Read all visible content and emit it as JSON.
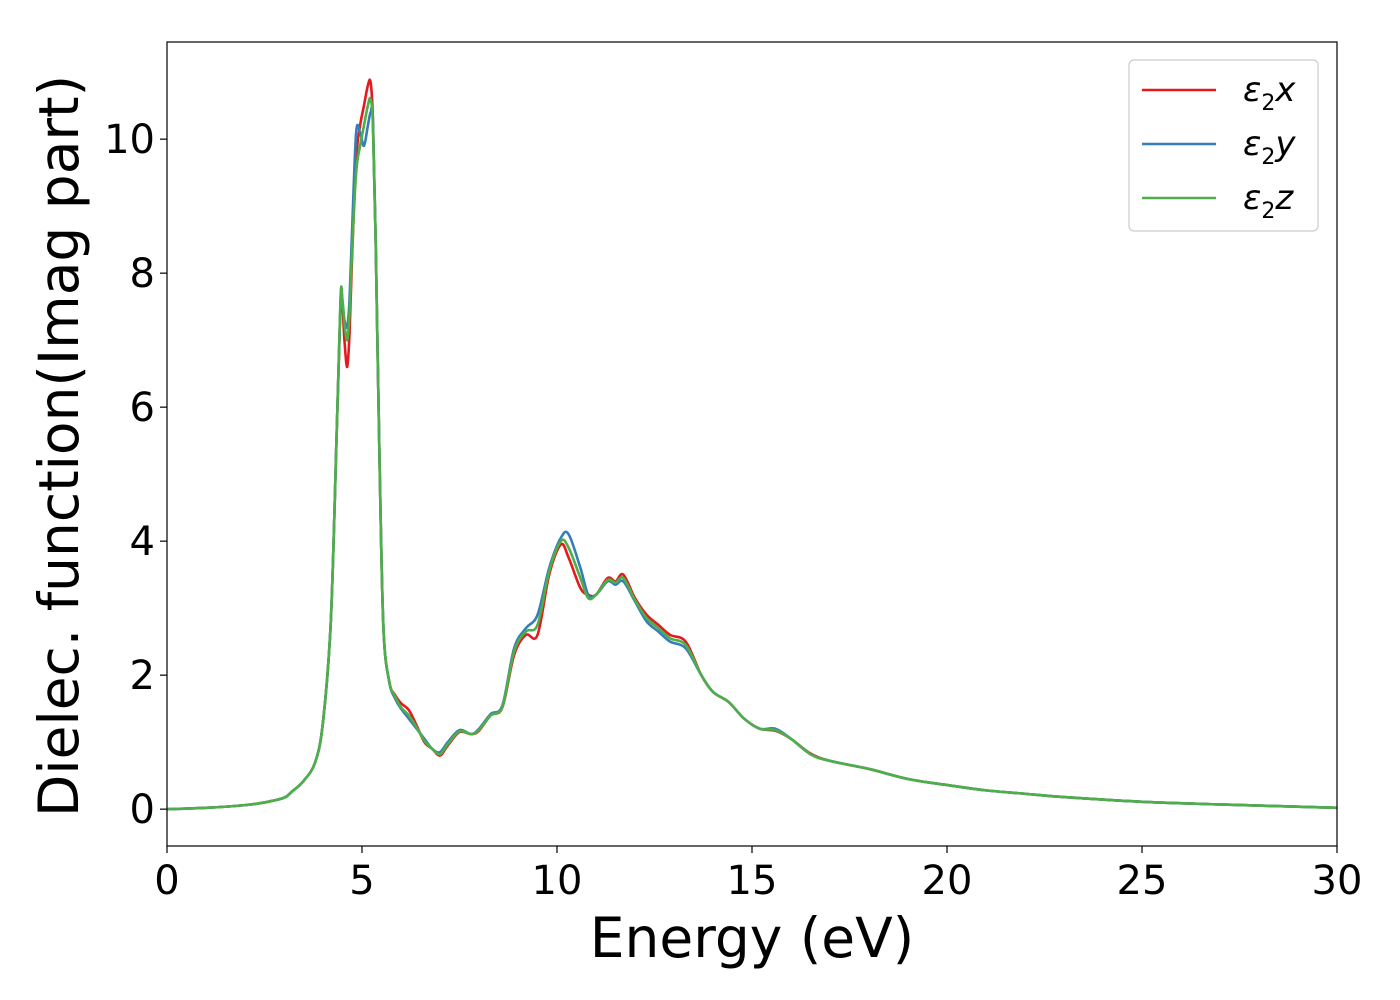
{
  "chart_data": {
    "type": "line",
    "title": "",
    "xlabel": "Energy (eV)",
    "ylabel": "Dielec. function(Imag part)",
    "xlim": [
      0,
      30
    ],
    "ylim": [
      -0.55,
      11.45
    ],
    "xticks": [
      0,
      5,
      10,
      15,
      20,
      25,
      30
    ],
    "yticks": [
      0,
      2,
      4,
      6,
      8,
      10
    ],
    "xtick_labels": [
      "0",
      "5",
      "10",
      "15",
      "20",
      "25",
      "30"
    ],
    "ytick_labels": [
      "0",
      "2",
      "4",
      "6",
      "8",
      "10"
    ],
    "grid": false,
    "legend_position": "top-right",
    "series": [
      {
        "name": "ε2x",
        "legend_base": "ε",
        "legend_sub": "2",
        "legend_tail": "x",
        "color": "#e41a1c",
        "x": [
          0,
          1,
          2,
          2.5,
          3,
          3.2,
          3.5,
          3.8,
          4,
          4.2,
          4.35,
          4.45,
          4.5,
          4.55,
          4.62,
          4.68,
          4.75,
          4.85,
          4.95,
          5.05,
          5.15,
          5.22,
          5.28,
          5.35,
          5.45,
          5.55,
          5.7,
          5.85,
          6,
          6.2,
          6.4,
          6.6,
          6.8,
          7,
          7.2,
          7.5,
          7.8,
          8,
          8.3,
          8.6,
          8.9,
          9.2,
          9.5,
          9.8,
          10.1,
          10.3,
          10.6,
          10.8,
          11,
          11.3,
          11.5,
          11.7,
          12,
          12.3,
          12.6,
          12.9,
          13.3,
          13.7,
          14,
          14.4,
          14.8,
          15.2,
          15.6,
          16,
          16.5,
          17,
          18,
          19,
          20,
          21,
          22,
          23,
          25,
          27,
          30
        ],
        "y": [
          0,
          0.02,
          0.06,
          0.1,
          0.17,
          0.26,
          0.42,
          0.7,
          1.3,
          2.8,
          5.6,
          7.55,
          7.5,
          7.0,
          6.6,
          7.1,
          8.3,
          9.7,
          10.2,
          10.5,
          10.8,
          10.85,
          10.3,
          8.5,
          5.2,
          2.7,
          1.9,
          1.7,
          1.58,
          1.48,
          1.25,
          1.0,
          0.9,
          0.8,
          0.95,
          1.15,
          1.12,
          1.17,
          1.4,
          1.52,
          2.3,
          2.6,
          2.6,
          3.5,
          3.95,
          3.75,
          3.3,
          3.2,
          3.2,
          3.45,
          3.4,
          3.5,
          3.15,
          2.9,
          2.75,
          2.6,
          2.5,
          2.0,
          1.75,
          1.6,
          1.35,
          1.2,
          1.17,
          1.05,
          0.83,
          0.72,
          0.6,
          0.45,
          0.36,
          0.28,
          0.23,
          0.18,
          0.11,
          0.07,
          0.02
        ]
      },
      {
        "name": "ε2y",
        "legend_base": "ε",
        "legend_sub": "2",
        "legend_tail": "y",
        "color": "#377eb8",
        "x": [
          0,
          1,
          2,
          2.5,
          3,
          3.2,
          3.5,
          3.8,
          4,
          4.2,
          4.35,
          4.45,
          4.5,
          4.55,
          4.62,
          4.68,
          4.75,
          4.85,
          4.95,
          5.05,
          5.15,
          5.22,
          5.28,
          5.35,
          5.45,
          5.55,
          5.7,
          5.85,
          6,
          6.2,
          6.4,
          6.6,
          6.8,
          7,
          7.2,
          7.5,
          7.8,
          8,
          8.3,
          8.6,
          8.9,
          9.2,
          9.5,
          9.8,
          10.1,
          10.3,
          10.6,
          10.8,
          11,
          11.3,
          11.5,
          11.7,
          12,
          12.3,
          12.6,
          12.9,
          13.3,
          13.7,
          14,
          14.4,
          14.8,
          15.2,
          15.6,
          16,
          16.5,
          17,
          18,
          19,
          20,
          21,
          22,
          23,
          25,
          27,
          30
        ],
        "y": [
          0,
          0.02,
          0.06,
          0.1,
          0.17,
          0.26,
          0.42,
          0.7,
          1.3,
          2.8,
          5.6,
          7.6,
          7.55,
          7.3,
          7.2,
          7.6,
          8.7,
          10.1,
          10.1,
          9.9,
          10.2,
          10.4,
          10.3,
          8.5,
          5.2,
          2.7,
          1.9,
          1.65,
          1.5,
          1.35,
          1.2,
          1.05,
          0.9,
          0.85,
          1.0,
          1.18,
          1.12,
          1.2,
          1.42,
          1.55,
          2.4,
          2.7,
          2.9,
          3.6,
          4.05,
          4.1,
          3.6,
          3.2,
          3.2,
          3.4,
          3.35,
          3.4,
          3.1,
          2.8,
          2.65,
          2.5,
          2.4,
          2.0,
          1.75,
          1.6,
          1.35,
          1.2,
          1.2,
          1.05,
          0.82,
          0.72,
          0.6,
          0.45,
          0.36,
          0.28,
          0.23,
          0.18,
          0.11,
          0.07,
          0.02
        ]
      },
      {
        "name": "ε2z",
        "legend_base": "ε",
        "legend_sub": "2",
        "legend_tail": "z",
        "color": "#4daf4a",
        "x": [
          0,
          1,
          2,
          2.5,
          3,
          3.2,
          3.5,
          3.8,
          4,
          4.2,
          4.35,
          4.45,
          4.5,
          4.55,
          4.62,
          4.68,
          4.75,
          4.85,
          4.95,
          5.05,
          5.15,
          5.22,
          5.28,
          5.35,
          5.45,
          5.55,
          5.7,
          5.85,
          6,
          6.2,
          6.4,
          6.6,
          6.8,
          7,
          7.2,
          7.5,
          7.8,
          8,
          8.3,
          8.6,
          8.9,
          9.2,
          9.5,
          9.8,
          10.1,
          10.3,
          10.6,
          10.8,
          11,
          11.3,
          11.5,
          11.7,
          12,
          12.3,
          12.6,
          12.9,
          13.3,
          13.7,
          14,
          14.4,
          14.8,
          15.2,
          15.6,
          16,
          16.5,
          17,
          18,
          19,
          20,
          21,
          22,
          23,
          25,
          27,
          30
        ],
        "y": [
          0,
          0.02,
          0.06,
          0.1,
          0.17,
          0.26,
          0.42,
          0.7,
          1.3,
          2.8,
          5.6,
          7.65,
          7.6,
          7.25,
          7.0,
          7.4,
          8.4,
          9.5,
          9.9,
          10.2,
          10.5,
          10.6,
          10.2,
          8.5,
          5.2,
          2.7,
          1.9,
          1.68,
          1.52,
          1.4,
          1.22,
          1.02,
          0.9,
          0.82,
          0.97,
          1.16,
          1.12,
          1.18,
          1.4,
          1.53,
          2.35,
          2.65,
          2.75,
          3.55,
          4.0,
          3.9,
          3.45,
          3.15,
          3.2,
          3.42,
          3.38,
          3.45,
          3.12,
          2.85,
          2.7,
          2.55,
          2.45,
          2.0,
          1.75,
          1.6,
          1.35,
          1.2,
          1.18,
          1.05,
          0.82,
          0.72,
          0.6,
          0.45,
          0.36,
          0.28,
          0.23,
          0.18,
          0.11,
          0.07,
          0.02
        ]
      }
    ]
  }
}
